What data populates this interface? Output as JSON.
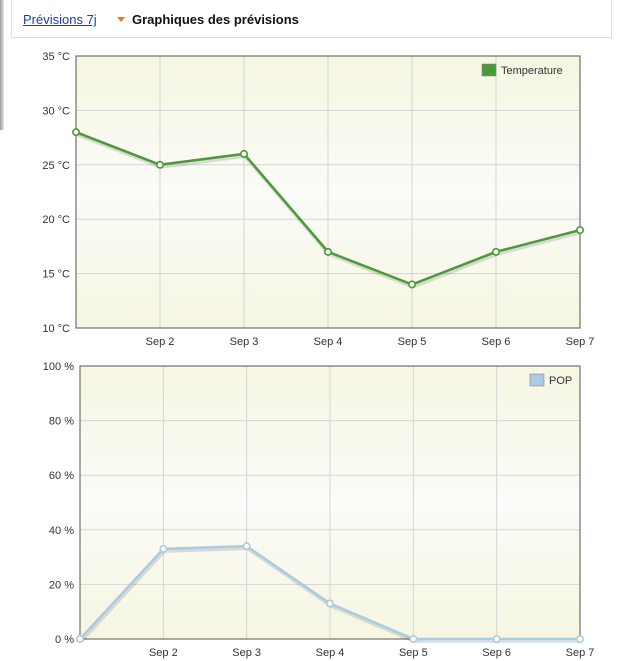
{
  "tabs": {
    "link_label": "Prévisions 7j",
    "active_label": "Graphiques des prévisions"
  },
  "colors": {
    "temperature": "#4a9a3a",
    "pop": "#a9cbe6",
    "tab_arrow": "#e87a1d",
    "plot_bg": "#fafaf2"
  },
  "chart_data": [
    {
      "type": "line",
      "legend": "Temperature",
      "legend_position": "top-right",
      "grid": true,
      "ylim": [
        10,
        35
      ],
      "yticks": [
        10,
        15,
        20,
        25,
        30,
        35
      ],
      "ytick_labels": [
        "10 °C",
        "15 °C",
        "20 °C",
        "25 °C",
        "30 °C",
        "35 °C"
      ],
      "xticks": [
        "Sep 2",
        "Sep 3",
        "Sep 4",
        "Sep 5",
        "Sep 6",
        "Sep 7"
      ],
      "series": [
        {
          "name": "Temperature",
          "x": [
            1,
            2,
            3,
            4,
            5,
            6,
            7
          ],
          "values": [
            28,
            25,
            26,
            17,
            14,
            17,
            19
          ]
        }
      ]
    },
    {
      "type": "line",
      "legend": "POP",
      "legend_position": "top-right",
      "grid": true,
      "ylim": [
        0,
        100
      ],
      "yticks": [
        0,
        20,
        40,
        60,
        80,
        100
      ],
      "ytick_labels": [
        "0 %",
        "20 %",
        "40 %",
        "60 %",
        "80 %",
        "100 %"
      ],
      "xticks": [
        "Sep 2",
        "Sep 3",
        "Sep 4",
        "Sep 5",
        "Sep 6",
        "Sep 7"
      ],
      "series": [
        {
          "name": "POP",
          "x": [
            1,
            2,
            3,
            4,
            5,
            6,
            7
          ],
          "values": [
            0,
            33,
            34,
            13,
            0,
            0,
            0
          ]
        }
      ]
    }
  ]
}
